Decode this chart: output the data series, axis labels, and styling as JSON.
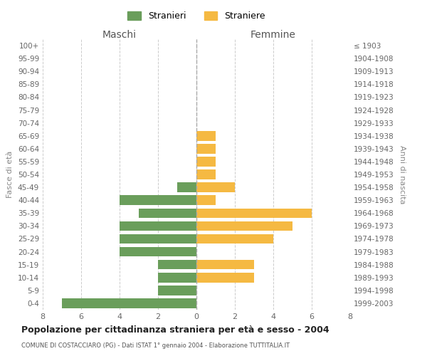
{
  "age_groups": [
    "0-4",
    "5-9",
    "10-14",
    "15-19",
    "20-24",
    "25-29",
    "30-34",
    "35-39",
    "40-44",
    "45-49",
    "50-54",
    "55-59",
    "60-64",
    "65-69",
    "70-74",
    "75-79",
    "80-84",
    "85-89",
    "90-94",
    "95-99",
    "100+"
  ],
  "birth_years": [
    "1999-2003",
    "1994-1998",
    "1989-1993",
    "1984-1988",
    "1979-1983",
    "1974-1978",
    "1969-1973",
    "1964-1968",
    "1959-1963",
    "1954-1958",
    "1949-1953",
    "1944-1948",
    "1939-1943",
    "1934-1938",
    "1929-1933",
    "1924-1928",
    "1919-1923",
    "1914-1918",
    "1909-1913",
    "1904-1908",
    "≤ 1903"
  ],
  "males": [
    7,
    2,
    2,
    2,
    4,
    4,
    4,
    3,
    4,
    1,
    0,
    0,
    0,
    0,
    0,
    0,
    0,
    0,
    0,
    0,
    0
  ],
  "females": [
    0,
    0,
    3,
    3,
    0,
    4,
    5,
    6,
    1,
    2,
    1,
    1,
    1,
    1,
    0,
    0,
    0,
    0,
    0,
    0,
    0
  ],
  "male_color": "#6a9e5b",
  "female_color": "#f5b942",
  "title": "Popolazione per cittadinanza straniera per età e sesso - 2004",
  "subtitle": "COMUNE DI COSTACCIARO (PG) - Dati ISTAT 1° gennaio 2004 - Elaborazione TUTTITALIA.IT",
  "xlabel_left": "Maschi",
  "xlabel_right": "Femmine",
  "ylabel_left": "Fasce di età",
  "ylabel_right": "Anni di nascita",
  "legend_male": "Stranieri",
  "legend_female": "Straniere",
  "xlim": 8,
  "background_color": "#ffffff",
  "grid_color": "#cccccc"
}
